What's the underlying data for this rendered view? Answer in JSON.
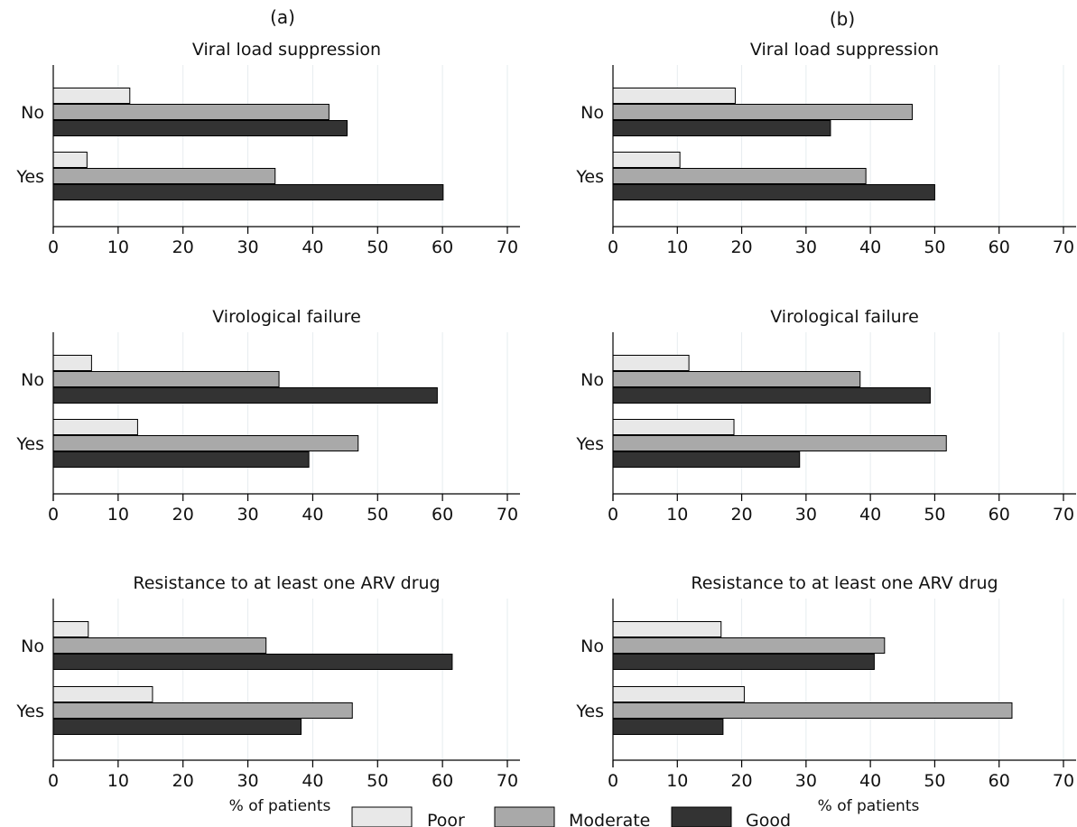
{
  "figure": {
    "column_labels": [
      "(a)",
      "(b)"
    ],
    "xlabel": "% of patients",
    "legend": [
      {
        "name": "Poor",
        "color": "#e8e8e8"
      },
      {
        "name": "Moderate",
        "color": "#a9a9a9"
      },
      {
        "name": "Good",
        "color": "#333333"
      }
    ]
  },
  "chart_data": [
    {
      "type": "bar",
      "orientation": "horizontal",
      "panel": "(a)",
      "title": "Viral load suppression",
      "categories": [
        "No",
        "Yes"
      ],
      "series": [
        {
          "name": "Poor",
          "values": [
            11.8,
            5.2
          ]
        },
        {
          "name": "Moderate",
          "values": [
            42.5,
            34.2
          ]
        },
        {
          "name": "Good",
          "values": [
            45.3,
            60.1
          ]
        }
      ],
      "xlim": [
        0,
        70
      ],
      "xticks": [
        0,
        10,
        20,
        30,
        40,
        50,
        60,
        70
      ],
      "grid": true,
      "legend_position": "bottom-center"
    },
    {
      "type": "bar",
      "orientation": "horizontal",
      "panel": "(b)",
      "title": "Viral load suppression",
      "categories": [
        "No",
        "Yes"
      ],
      "series": [
        {
          "name": "Poor",
          "values": [
            19.0,
            10.4
          ]
        },
        {
          "name": "Moderate",
          "values": [
            46.5,
            39.3
          ]
        },
        {
          "name": "Good",
          "values": [
            33.8,
            50.0
          ]
        }
      ],
      "xlim": [
        0,
        70
      ],
      "xticks": [
        0,
        10,
        20,
        30,
        40,
        50,
        60,
        70
      ],
      "grid": true,
      "legend_position": "bottom-center"
    },
    {
      "type": "bar",
      "orientation": "horizontal",
      "panel": "(a)",
      "title": "Virological failure",
      "categories": [
        "No",
        "Yes"
      ],
      "series": [
        {
          "name": "Poor",
          "values": [
            5.9,
            13.0
          ]
        },
        {
          "name": "Moderate",
          "values": [
            34.8,
            47.0
          ]
        },
        {
          "name": "Good",
          "values": [
            59.2,
            39.4
          ]
        }
      ],
      "xlim": [
        0,
        70
      ],
      "xticks": [
        0,
        10,
        20,
        30,
        40,
        50,
        60,
        70
      ],
      "grid": true,
      "legend_position": "bottom-center"
    },
    {
      "type": "bar",
      "orientation": "horizontal",
      "panel": "(b)",
      "title": "Virological failure",
      "categories": [
        "No",
        "Yes"
      ],
      "series": [
        {
          "name": "Poor",
          "values": [
            11.8,
            18.8
          ]
        },
        {
          "name": "Moderate",
          "values": [
            38.4,
            51.8
          ]
        },
        {
          "name": "Good",
          "values": [
            49.3,
            29.0
          ]
        }
      ],
      "xlim": [
        0,
        70
      ],
      "xticks": [
        0,
        10,
        20,
        30,
        40,
        50,
        60,
        70
      ],
      "grid": true,
      "legend_position": "bottom-center"
    },
    {
      "type": "bar",
      "orientation": "horizontal",
      "panel": "(a)",
      "title": "Resistance to at least one ARV drug",
      "categories": [
        "No",
        "Yes"
      ],
      "series": [
        {
          "name": "Poor",
          "values": [
            5.4,
            15.3
          ]
        },
        {
          "name": "Moderate",
          "values": [
            32.8,
            46.1
          ]
        },
        {
          "name": "Good",
          "values": [
            61.5,
            38.2
          ]
        }
      ],
      "xlim": [
        0,
        70
      ],
      "xticks": [
        0,
        10,
        20,
        30,
        40,
        50,
        60,
        70
      ],
      "grid": true,
      "legend_position": "bottom-center"
    },
    {
      "type": "bar",
      "orientation": "horizontal",
      "panel": "(b)",
      "title": "Resistance to at least one ARV drug",
      "categories": [
        "No",
        "Yes"
      ],
      "series": [
        {
          "name": "Poor",
          "values": [
            16.8,
            20.4
          ]
        },
        {
          "name": "Moderate",
          "values": [
            42.2,
            62.0
          ]
        },
        {
          "name": "Good",
          "values": [
            40.6,
            17.1
          ]
        }
      ],
      "xlim": [
        0,
        70
      ],
      "xticks": [
        0,
        10,
        20,
        30,
        40,
        50,
        60,
        70
      ],
      "grid": true,
      "legend_position": "bottom-center"
    }
  ]
}
